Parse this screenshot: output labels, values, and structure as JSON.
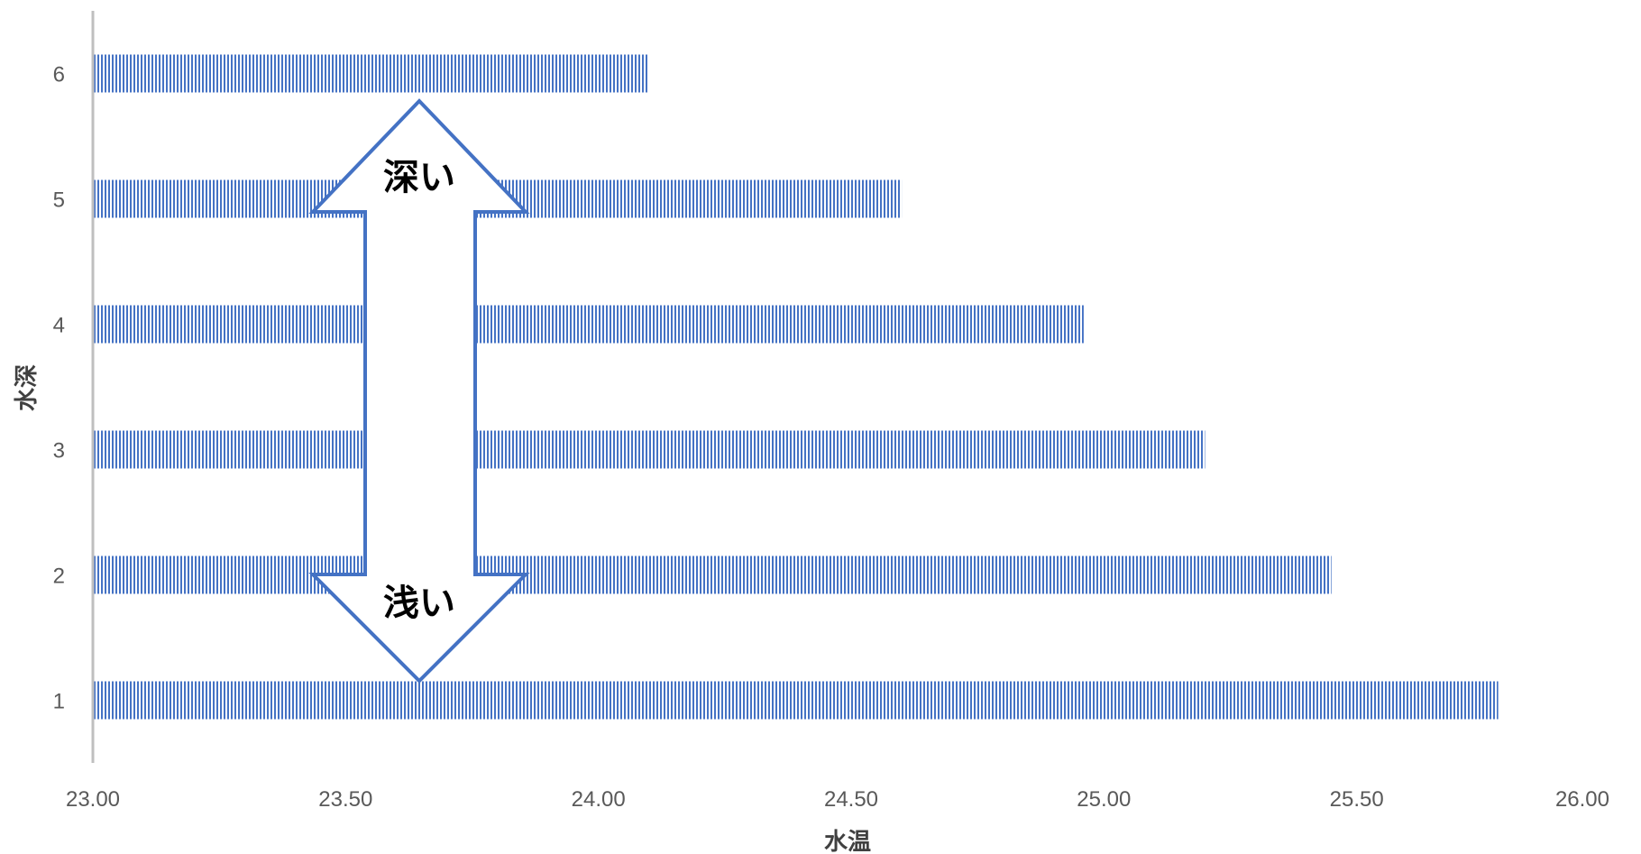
{
  "chart_data": {
    "type": "bar",
    "orientation": "horizontal",
    "categories": [
      "1",
      "2",
      "3",
      "4",
      "5",
      "6"
    ],
    "values": [
      25.78,
      25.45,
      25.2,
      24.96,
      24.6,
      24.1
    ],
    "xlabel": "水温",
    "ylabel": "水深",
    "xlim": [
      23.0,
      26.0
    ],
    "x_ticks": [
      "23.00",
      "23.50",
      "24.00",
      "24.50",
      "25.00",
      "25.50",
      "26.00"
    ],
    "grid": false,
    "legend": "none",
    "bar_color": "#4472C4",
    "bar_pattern": "vertical-stripes",
    "annotations": {
      "arrow": "double-headed-vertical",
      "top_label": "深い",
      "bottom_label": "浅い"
    }
  }
}
